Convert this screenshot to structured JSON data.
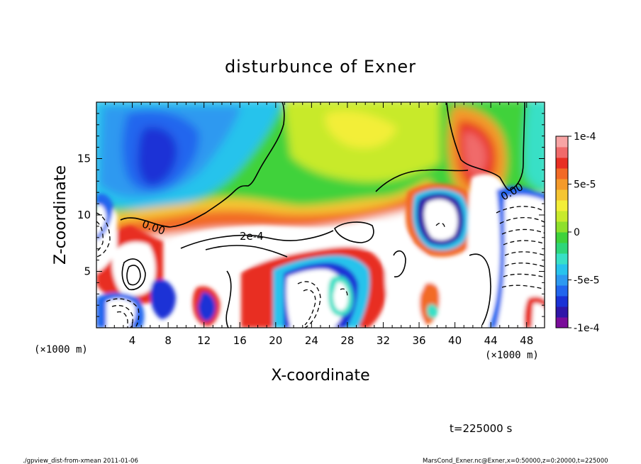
{
  "chart_data": {
    "type": "heatmap",
    "title": "disturbunce of Exner",
    "xlabel": "X-coordinate",
    "ylabel": "Z-coordinate",
    "x_unit": "(×1000 m)",
    "y_unit": "(×1000 m)",
    "xlim": [
      0,
      50
    ],
    "ylim": [
      0,
      20
    ],
    "x_ticks": [
      4,
      8,
      12,
      16,
      20,
      24,
      28,
      32,
      36,
      40,
      44,
      48
    ],
    "y_ticks": [
      5,
      10,
      15
    ],
    "colorbar": {
      "range": [
        -0.0001,
        0.0001
      ],
      "tick_values": [
        0.0001,
        5e-05,
        0,
        -5e-05,
        -0.0001
      ],
      "tick_labels": [
        "1e-4",
        "5e-5",
        "0",
        "-5e-5",
        "-1e-4"
      ],
      "colors": [
        "#7a0d9a",
        "#2f16a8",
        "#1a32d6",
        "#2266ee",
        "#2d99f0",
        "#27c3ec",
        "#38e0c6",
        "#2ed67a",
        "#3fd23b",
        "#8ee02b",
        "#c8ea2c",
        "#f3ee38",
        "#f5c532",
        "#f49a2a",
        "#f26a26",
        "#e82f23",
        "#f06a6a",
        "#f8a4a4"
      ]
    },
    "contour_labels": [
      "0.00",
      "2e-4",
      "0.00"
    ],
    "regions": [
      {
        "name": "upper-left minimum",
        "x": 6,
        "z": 15,
        "value": -9e-05
      },
      {
        "name": "upper-right maximum",
        "x": 41.5,
        "z": 16.5,
        "value": 8e-05
      },
      {
        "name": "upper-center warm band",
        "x": 29,
        "z": 17,
        "value": 4e-05
      },
      {
        "name": "right low-pressure cell",
        "x": 38.5,
        "z": 10,
        "value": -0.0001
      },
      {
        "name": "lower-center cell",
        "x": 27,
        "z": 3.5,
        "value": -6e-05
      },
      {
        "name": "lower-left cell",
        "x": 7.5,
        "z": 2.5,
        "value": -8e-05
      },
      {
        "name": "mid plateau",
        "x": 20,
        "z": 7.5,
        "value": 0.0002
      }
    ]
  },
  "footer": {
    "time_label": "t=225000 s",
    "left_note": "./gpview_dist-from-xmean  2011-01-06",
    "right_note": "MarsCond_Exner.nc@Exner,x=0:50000,z=0:20000,t=225000"
  }
}
